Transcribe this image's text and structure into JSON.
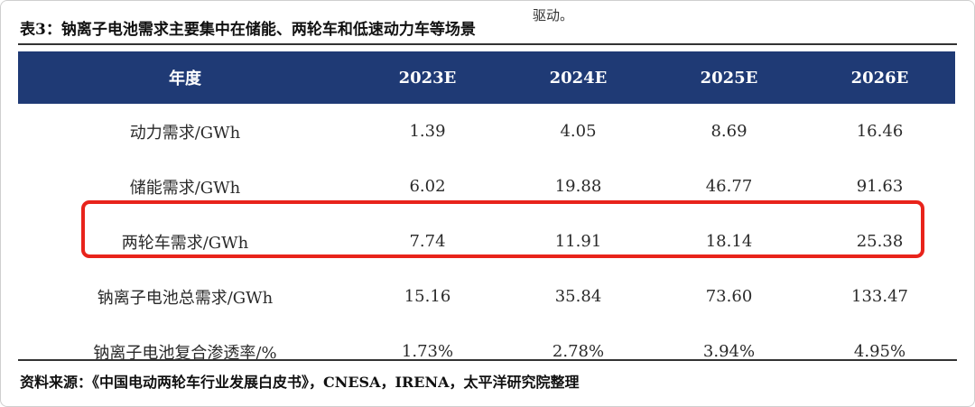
{
  "header_fragment": "驱动。",
  "title": "表3：钠离子电池需求主要集中在储能、两轮车和低速动力车等场景",
  "table": {
    "headers": [
      "年度",
      "2023E",
      "2024E",
      "2025E",
      "2026E"
    ],
    "rows": [
      [
        "动力需求/GWh",
        "1.39",
        "4.05",
        "8.69",
        "16.46"
      ],
      [
        "储能需求/GWh",
        "6.02",
        "19.88",
        "46.77",
        "91.63"
      ],
      [
        "两轮车需求/GWh",
        "7.74",
        "11.91",
        "18.14",
        "25.38"
      ],
      [
        "钠离子电池总需求/GWh",
        "15.16",
        "35.84",
        "73.60",
        "133.47"
      ],
      [
        "钠离子电池复合渗透率/%",
        "1.73%",
        "2.78%",
        "3.94%",
        "4.95%"
      ]
    ],
    "highlighted_row": 2
  },
  "source": "资料来源：《中国电动两轮车行业发展白皮书》，CNESA，IRENA，太平洋研究院整理",
  "colors": {
    "header_bg": "#1f3a75",
    "highlight_border": "#e8231b"
  }
}
